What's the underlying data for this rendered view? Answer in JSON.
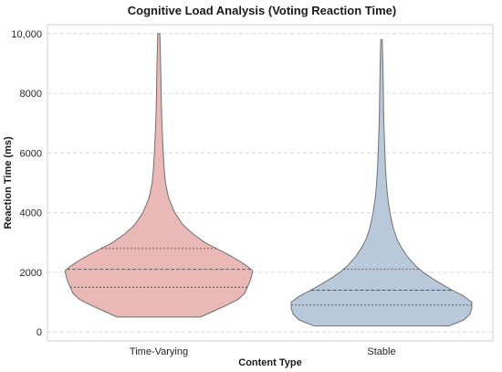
{
  "chart_data": {
    "type": "violin",
    "title": "Cognitive Load Analysis (Voting Reaction Time)",
    "xlabel": "Content Type",
    "ylabel": "Reaction Time (ms)",
    "ylim": [
      -300,
      10300
    ],
    "yticks": [
      0,
      2000,
      4000,
      6000,
      8000,
      10000
    ],
    "ytick_labels": [
      "0",
      "2000",
      "4000",
      "6000",
      "8000",
      "10,000"
    ],
    "grid": true,
    "categories": [
      "Time-Varying",
      "Stable"
    ],
    "series": [
      {
        "category": "Time-Varying",
        "color": "#eab8b5",
        "min": 500,
        "max": 10000,
        "q1": 1500,
        "median": 2100,
        "q3": 2800,
        "profile": [
          [
            500,
            0.47
          ],
          [
            700,
            0.62
          ],
          [
            900,
            0.77
          ],
          [
            1100,
            0.9
          ],
          [
            1300,
            0.97
          ],
          [
            1500,
            1.0
          ],
          [
            1700,
            1.03
          ],
          [
            1900,
            1.05
          ],
          [
            2050,
            1.06
          ],
          [
            2200,
            1.0
          ],
          [
            2400,
            0.9
          ],
          [
            2600,
            0.78
          ],
          [
            2800,
            0.65
          ],
          [
            3000,
            0.52
          ],
          [
            3300,
            0.38
          ],
          [
            3600,
            0.27
          ],
          [
            4000,
            0.18
          ],
          [
            4500,
            0.11
          ],
          [
            5000,
            0.075
          ],
          [
            5500,
            0.06
          ],
          [
            6000,
            0.05
          ],
          [
            6500,
            0.042
          ],
          [
            7000,
            0.035
          ],
          [
            7500,
            0.03
          ],
          [
            8000,
            0.026
          ],
          [
            8500,
            0.024
          ],
          [
            9000,
            0.02
          ],
          [
            9500,
            0.016
          ],
          [
            10000,
            0.012
          ]
        ]
      },
      {
        "category": "Stable",
        "color": "#b9c9dc",
        "min": 200,
        "max": 9800,
        "q1": 900,
        "median": 1400,
        "q3": 2100,
        "profile": [
          [
            200,
            0.76
          ],
          [
            400,
            0.93
          ],
          [
            600,
            1.0
          ],
          [
            800,
            1.02
          ],
          [
            1000,
            1.02
          ],
          [
            1200,
            0.93
          ],
          [
            1400,
            0.8
          ],
          [
            1600,
            0.68
          ],
          [
            1800,
            0.57
          ],
          [
            2000,
            0.47
          ],
          [
            2200,
            0.39
          ],
          [
            2500,
            0.3
          ],
          [
            2800,
            0.23
          ],
          [
            3100,
            0.175
          ],
          [
            3500,
            0.13
          ],
          [
            4000,
            0.095
          ],
          [
            4500,
            0.07
          ],
          [
            5000,
            0.055
          ],
          [
            5500,
            0.045
          ],
          [
            6000,
            0.038
          ],
          [
            6500,
            0.032
          ],
          [
            7000,
            0.027
          ],
          [
            7500,
            0.023
          ],
          [
            8000,
            0.021
          ],
          [
            8500,
            0.018
          ],
          [
            9000,
            0.015
          ],
          [
            9500,
            0.011
          ],
          [
            9800,
            0.008
          ]
        ]
      }
    ]
  }
}
